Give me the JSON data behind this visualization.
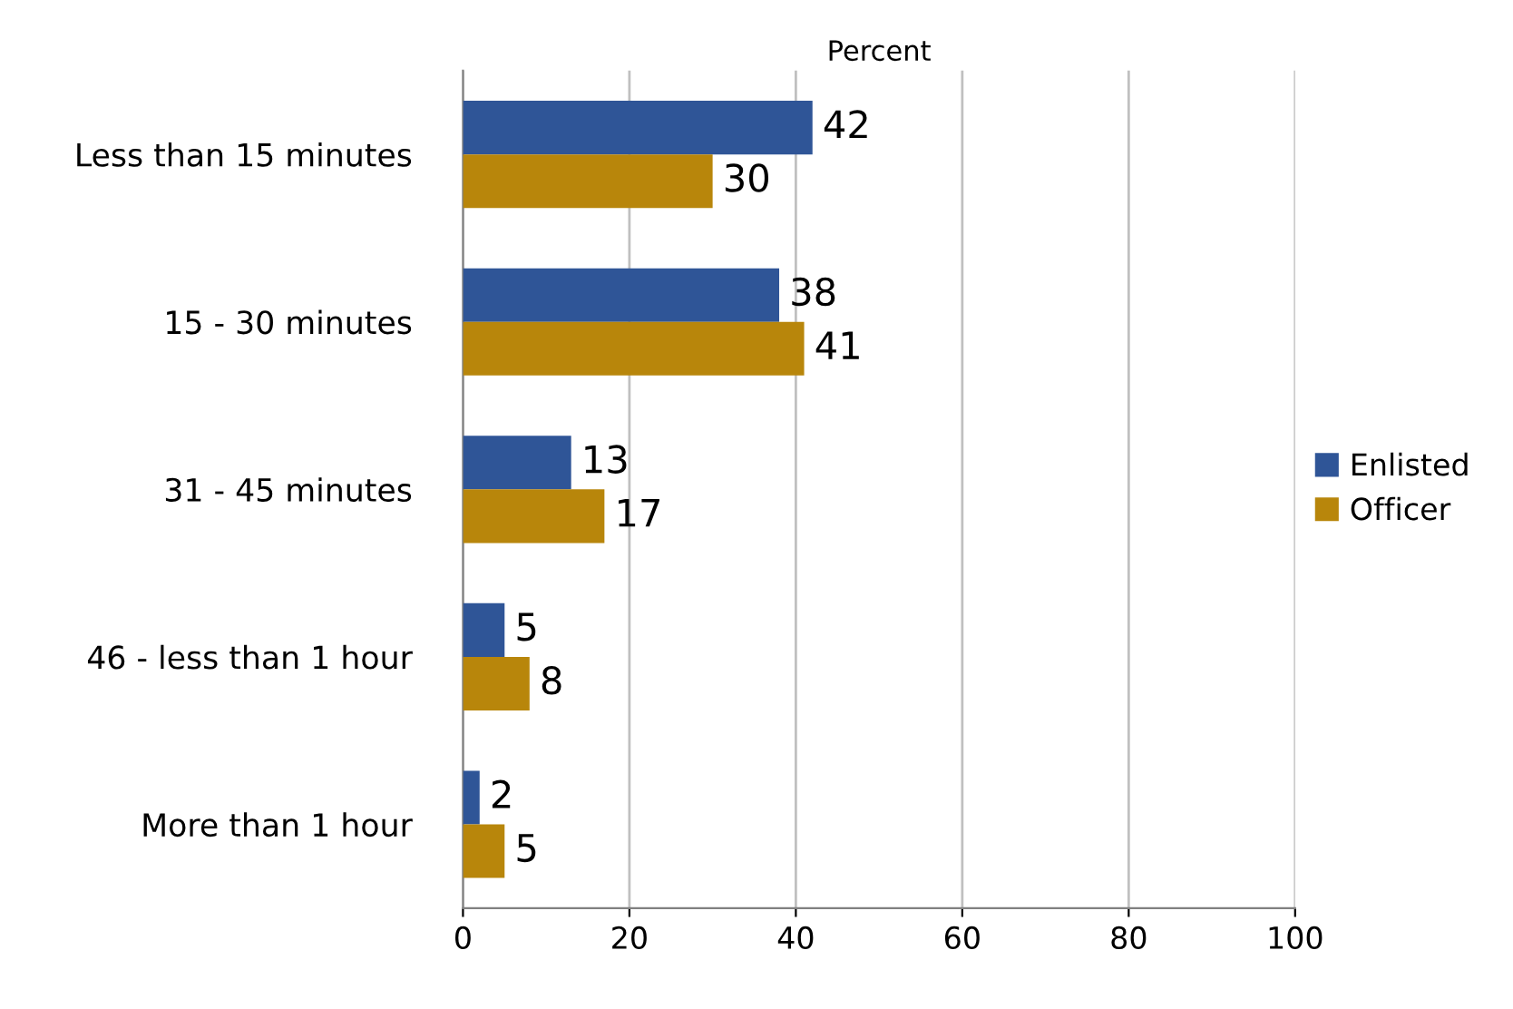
{
  "chart_data": {
    "type": "bar",
    "orientation": "horizontal",
    "xlabel": "Percent",
    "categories": [
      "Less than 15 minutes",
      "15 - 30 minutes",
      "31 - 45 minutes",
      "46 - less than 1 hour",
      "More than 1 hour"
    ],
    "series": [
      {
        "name": "Enlisted",
        "color": "#2f5597",
        "values": [
          42,
          38,
          13,
          5,
          2
        ]
      },
      {
        "name": "Officer",
        "color": "#b8860b",
        "values": [
          30,
          41,
          17,
          8,
          5
        ]
      }
    ],
    "xlim": [
      0,
      100
    ],
    "xticks": [
      0,
      20,
      40,
      60,
      80,
      100
    ],
    "grid": "x",
    "legend": "right",
    "data_labels": true
  }
}
